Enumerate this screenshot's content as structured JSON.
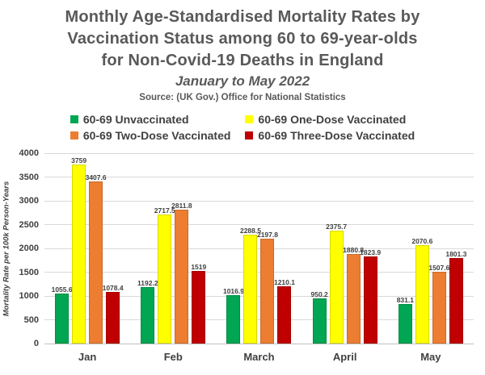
{
  "title": {
    "line1": "Monthly Age-Standardised Mortality Rates by",
    "line2": "Vaccination Status among 60 to 69-year-olds",
    "line3": "for Non-Covid-19 Deaths in England",
    "subtitle": "January to May 2022",
    "source": "Source: (UK Gov.) Office for National Statistics"
  },
  "colors": {
    "title_text": "#595959",
    "axis_text": "#404040",
    "data_label_text": "#3f3f3f",
    "gridline": "#d9d9d9",
    "background": "#ffffff"
  },
  "chart_data": {
    "type": "bar",
    "categories": [
      "Jan",
      "Feb",
      "March",
      "April",
      "May"
    ],
    "series": [
      {
        "name": "60-69 Unvaccinated",
        "color": "#00A651",
        "values": [
          1055.6,
          1192.2,
          1016.9,
          950.2,
          831.1
        ]
      },
      {
        "name": "60-69 One-Dose Vaccinated",
        "color": "#FFFF00",
        "values": [
          3759,
          2717.5,
          2288.5,
          2375.7,
          2070.6
        ]
      },
      {
        "name": "60-69 Two-Dose Vaccinated",
        "color": "#ED7D31",
        "values": [
          3407.6,
          2811.8,
          2197.8,
          1880.8,
          1507.6
        ]
      },
      {
        "name": "60-69 Three-Dose Vaccinated",
        "color": "#C00000",
        "values": [
          1078.4,
          1519,
          1210.1,
          1823.9,
          1801.3
        ]
      }
    ],
    "ylabel": "Mortality Rate per 100k Person-Years",
    "xlabel": "",
    "ylim": [
      0,
      4000
    ],
    "yticks": [
      4000,
      3500,
      3000,
      2500,
      2000,
      1500,
      1000,
      500,
      0
    ],
    "grid": true,
    "legend_position": "top",
    "data_labels": true
  }
}
